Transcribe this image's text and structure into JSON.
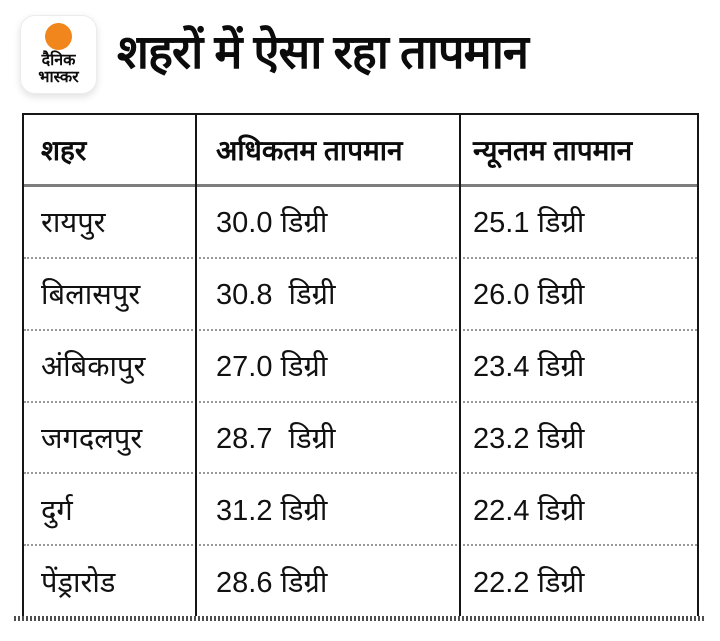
{
  "brand": {
    "logo_line1": "दैनिक",
    "logo_line2": "भास्कर",
    "accent_color": "#F0861C"
  },
  "header": {
    "title": "शहरों में ऐसा रहा तापमान"
  },
  "table": {
    "columns": [
      "शहर",
      "अधिकतम तापमान",
      "न्यूनतम तापमान"
    ],
    "rows": [
      {
        "city": "रायपुर",
        "max": "30.0 डिग्री",
        "min": "25.1 डिग्री"
      },
      {
        "city": "बिलासपुर",
        "max": "30.8  डिग्री",
        "min": "26.0 डिग्री"
      },
      {
        "city": "अंबिकापुर",
        "max": "27.0 डिग्री",
        "min": "23.4 डिग्री"
      },
      {
        "city": "जगदलपुर",
        "max": "28.7  डिग्री",
        "min": "23.2 डिग्री"
      },
      {
        "city": "दुर्ग",
        "max": "31.2 डिग्री",
        "min": "22.4 डिग्री"
      },
      {
        "city": "पेंड्रारोड",
        "max": "28.6 डिग्री",
        "min": "22.2 डिग्री"
      }
    ]
  },
  "chart_data": {
    "type": "table",
    "title": "शहरों में ऐसा रहा तापमान",
    "columns": [
      "शहर",
      "अधिकतम तापमान",
      "न्यूनतम तापमान"
    ],
    "categories": [
      "रायपुर",
      "बिलासपुर",
      "अंबिकापुर",
      "जगदलपुर",
      "दुर्ग",
      "पेंड्रारोड"
    ],
    "series": [
      {
        "name": "अधिकतम तापमान",
        "values": [
          30.0,
          30.8,
          27.0,
          28.7,
          31.2,
          28.6
        ]
      },
      {
        "name": "न्यूनतम तापमान",
        "values": [
          25.1,
          26.0,
          23.4,
          23.2,
          22.4,
          22.2
        ]
      }
    ],
    "unit": "डिग्री",
    "legend_position": "none",
    "grid": "table-borders"
  }
}
